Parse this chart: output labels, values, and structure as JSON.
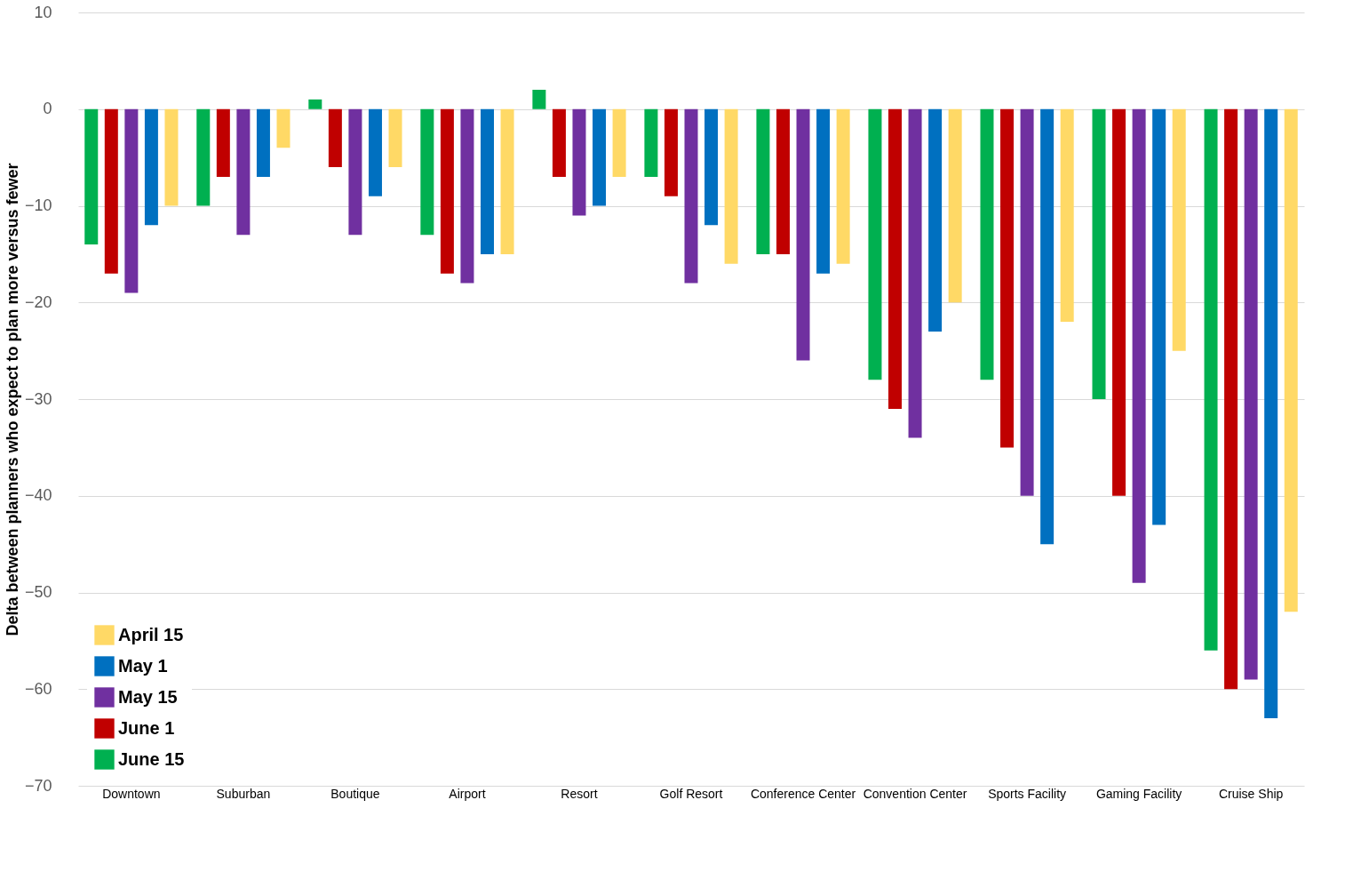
{
  "chart_data": {
    "type": "bar",
    "ylabel": "Delta between planners who expect to plan more versus fewer",
    "categories": [
      "Downtown",
      "Suburban",
      "Boutique",
      "Airport",
      "Resort",
      "Golf Resort",
      "Conference Center",
      "Convention Center",
      "Sports Facility",
      "Gaming Facility",
      "Cruise Ship"
    ],
    "series": [
      {
        "name": "June 15",
        "color": "#00b050",
        "values": [
          -14,
          -10,
          1,
          -13,
          2,
          -7,
          -15,
          -28,
          -28,
          -30,
          -56
        ]
      },
      {
        "name": "June 1",
        "color": "#c00000",
        "values": [
          -17,
          -7,
          -6,
          -17,
          -7,
          -9,
          -15,
          -31,
          -35,
          -40,
          -60
        ]
      },
      {
        "name": "May 15",
        "color": "#7030a0",
        "values": [
          -19,
          -13,
          -13,
          -18,
          -11,
          -18,
          -26,
          -34,
          -40,
          -49,
          -59
        ]
      },
      {
        "name": "May 1",
        "color": "#0070c0",
        "values": [
          -12,
          -7,
          -9,
          -15,
          -10,
          -12,
          -17,
          -23,
          -45,
          -43,
          -63
        ]
      },
      {
        "name": "April 15",
        "color": "#ffd966",
        "values": [
          -10,
          -4,
          -6,
          -15,
          -7,
          -16,
          -16,
          -20,
          -22,
          -25,
          -52
        ]
      }
    ],
    "ylim": [
      -70,
      10
    ],
    "yticks": [
      -70,
      -60,
      -50,
      -40,
      -30,
      -20,
      -10,
      0,
      10
    ],
    "grid": "y",
    "legend": "bottom left"
  }
}
